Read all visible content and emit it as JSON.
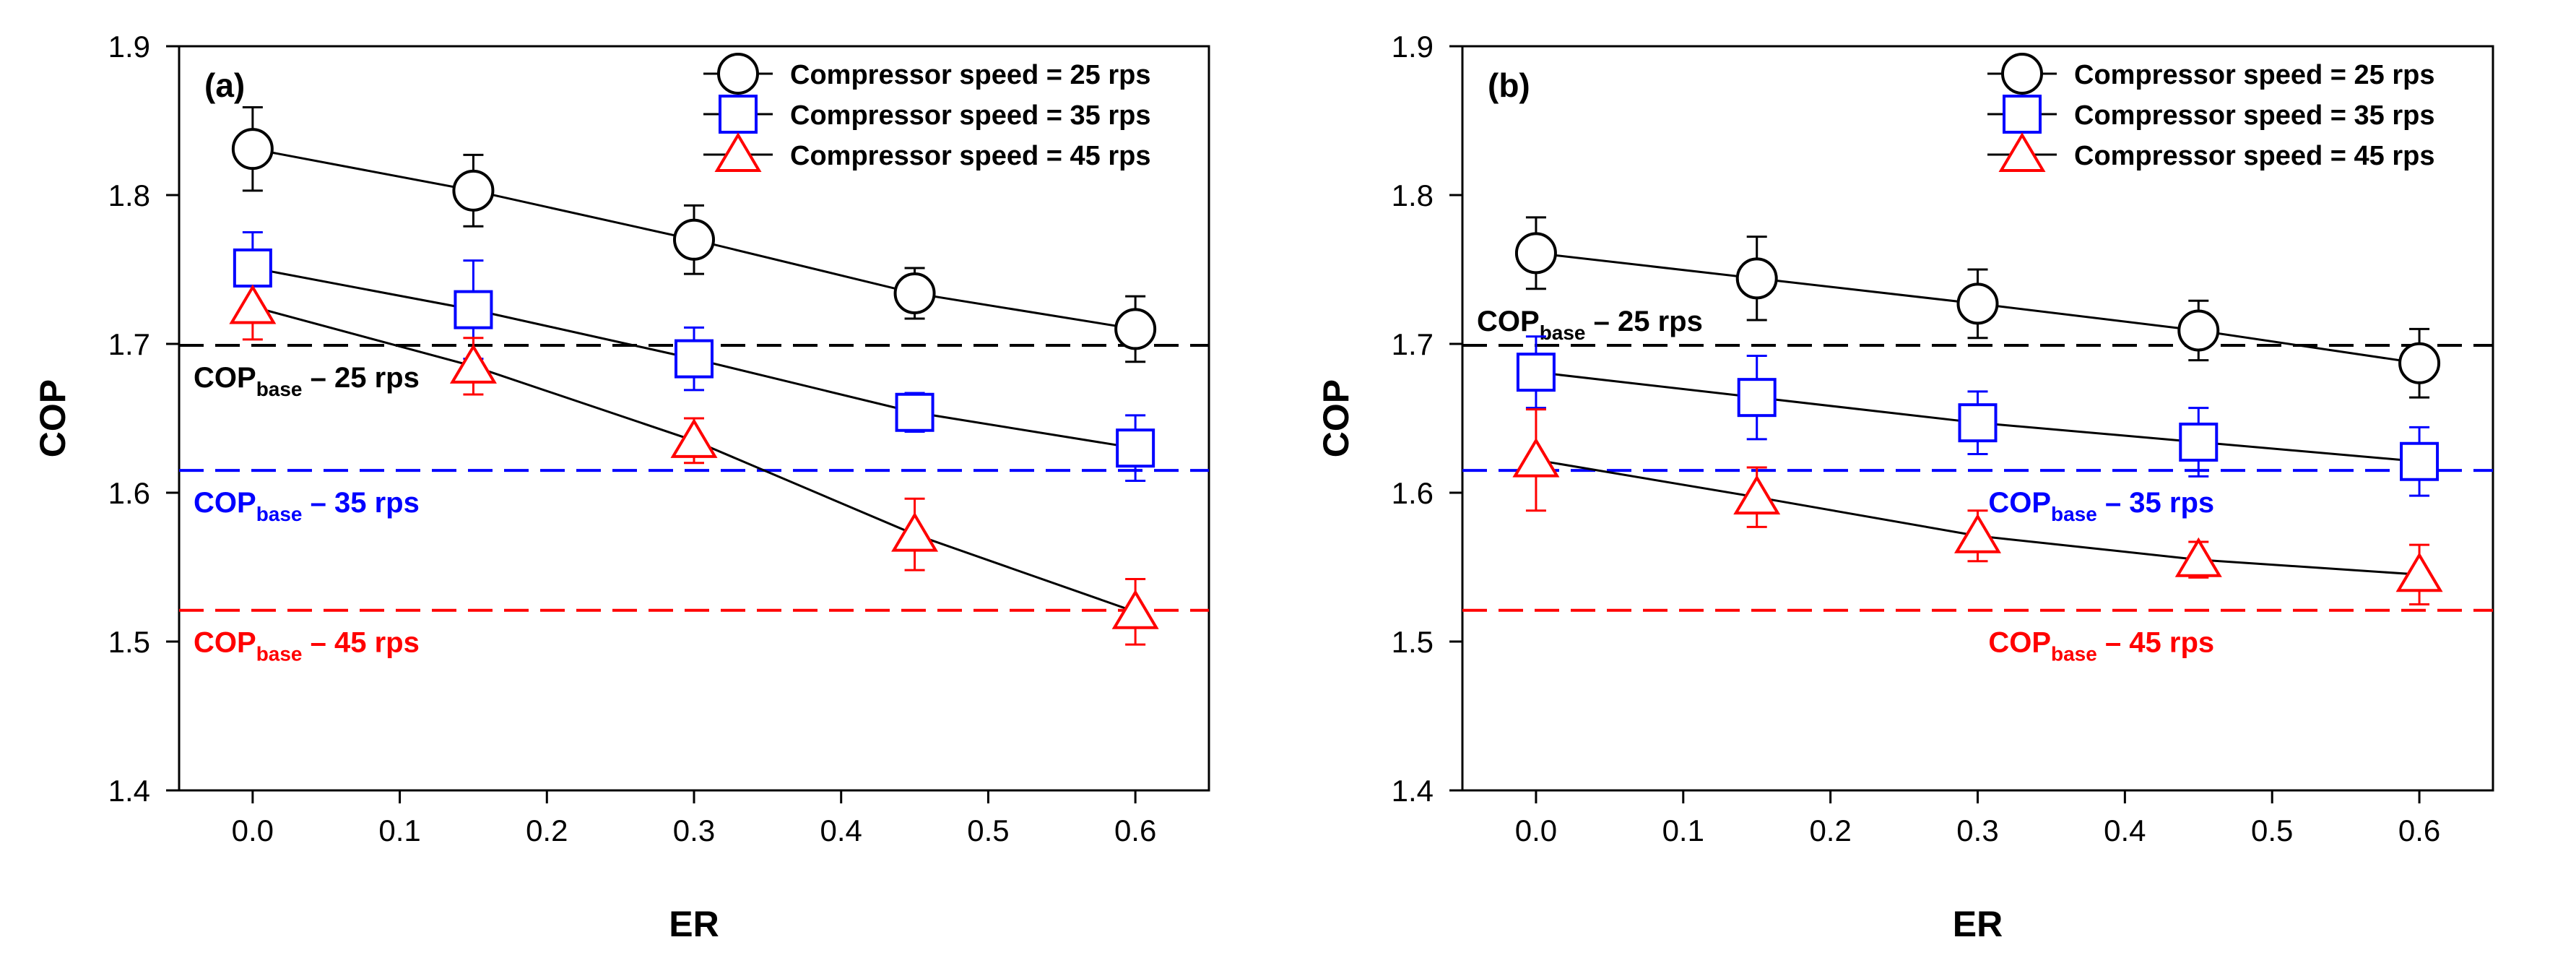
{
  "chart_data": [
    {
      "type": "line",
      "panel_label": "(a)",
      "xlabel": "ER",
      "ylabel": "COP",
      "xlim": [
        -0.05,
        0.65
      ],
      "ylim": [
        1.4,
        1.9
      ],
      "xticks": [
        0.0,
        0.1,
        0.2,
        0.3,
        0.4,
        0.5,
        0.6
      ],
      "xtick_labels": [
        "0.0",
        "0.1",
        "0.2",
        "0.3",
        "0.4",
        "0.5",
        "0.6"
      ],
      "yticks": [
        1.4,
        1.5,
        1.6,
        1.7,
        1.8,
        1.9
      ],
      "ytick_labels": [
        "1.4",
        "1.5",
        "1.6",
        "1.7",
        "1.8",
        "1.9"
      ],
      "legend_position": "top-right",
      "x": [
        0.0,
        0.15,
        0.3,
        0.45,
        0.6
      ],
      "series": [
        {
          "name": "Compressor speed = 25 rps",
          "marker": "circle",
          "color": "#000000",
          "values": [
            1.831,
            1.803,
            1.77,
            1.734,
            1.71
          ],
          "errors": [
            0.028,
            0.024,
            0.023,
            0.017,
            0.022
          ]
        },
        {
          "name": "Compressor speed = 35 rps",
          "marker": "square",
          "color": "#0000ff",
          "values": [
            1.751,
            1.723,
            1.69,
            1.654,
            1.63
          ],
          "errors": [
            0.024,
            0.033,
            0.021,
            0.013,
            0.022
          ]
        },
        {
          "name": "Compressor speed = 45 rps",
          "marker": "triangle",
          "color": "#ff0000",
          "values": [
            1.725,
            1.685,
            1.635,
            1.572,
            1.52
          ],
          "errors": [
            0.022,
            0.019,
            0.015,
            0.024,
            0.022
          ]
        }
      ],
      "baselines": [
        {
          "value": 1.699,
          "color": "#000000",
          "label_main": "COP",
          "label_sub": "base",
          "label_rest": " – 25 rps",
          "label_side": "left",
          "label_pos": "below"
        },
        {
          "value": 1.615,
          "color": "#0000ff",
          "label_main": "COP",
          "label_sub": "base",
          "label_rest": " – 35 rps",
          "label_side": "left",
          "label_pos": "below"
        },
        {
          "value": 1.521,
          "color": "#ff0000",
          "label_main": "COP",
          "label_sub": "base",
          "label_rest": " – 45 rps",
          "label_side": "left",
          "label_pos": "below"
        }
      ]
    },
    {
      "type": "line",
      "panel_label": "(b)",
      "xlabel": "ER",
      "ylabel": "COP",
      "xlim": [
        -0.05,
        0.65
      ],
      "ylim": [
        1.4,
        1.9
      ],
      "xticks": [
        0.0,
        0.1,
        0.2,
        0.3,
        0.4,
        0.5,
        0.6
      ],
      "xtick_labels": [
        "0.0",
        "0.1",
        "0.2",
        "0.3",
        "0.4",
        "0.5",
        "0.6"
      ],
      "yticks": [
        1.4,
        1.5,
        1.6,
        1.7,
        1.8,
        1.9
      ],
      "ytick_labels": [
        "1.4",
        "1.5",
        "1.6",
        "1.7",
        "1.8",
        "1.9"
      ],
      "legend_position": "top-right",
      "x": [
        0.0,
        0.15,
        0.3,
        0.45,
        0.6
      ],
      "series": [
        {
          "name": "Compressor speed = 25 rps",
          "marker": "circle",
          "color": "#000000",
          "values": [
            1.761,
            1.744,
            1.727,
            1.709,
            1.687
          ],
          "errors": [
            0.024,
            0.028,
            0.023,
            0.02,
            0.023
          ]
        },
        {
          "name": "Compressor speed = 35 rps",
          "marker": "square",
          "color": "#0000ff",
          "values": [
            1.681,
            1.664,
            1.647,
            1.634,
            1.621
          ],
          "errors": [
            0.024,
            0.028,
            0.021,
            0.023,
            0.023
          ]
        },
        {
          "name": "Compressor speed = 45 rps",
          "marker": "triangle",
          "color": "#ff0000",
          "values": [
            1.622,
            1.597,
            1.571,
            1.555,
            1.545
          ],
          "errors": [
            0.034,
            0.02,
            0.017,
            0.012,
            0.02
          ]
        }
      ],
      "baselines": [
        {
          "value": 1.699,
          "color": "#000000",
          "label_main": "COP",
          "label_sub": "base",
          "label_rest": " – 25 rps",
          "label_side": "left",
          "label_pos": "above"
        },
        {
          "value": 1.615,
          "color": "#0000ff",
          "label_main": "COP",
          "label_sub": "base",
          "label_rest": " – 35 rps",
          "label_side": "center",
          "label_pos": "below"
        },
        {
          "value": 1.521,
          "color": "#ff0000",
          "label_main": "COP",
          "label_sub": "base",
          "label_rest": " – 45 rps",
          "label_side": "center",
          "label_pos": "below"
        }
      ]
    }
  ]
}
